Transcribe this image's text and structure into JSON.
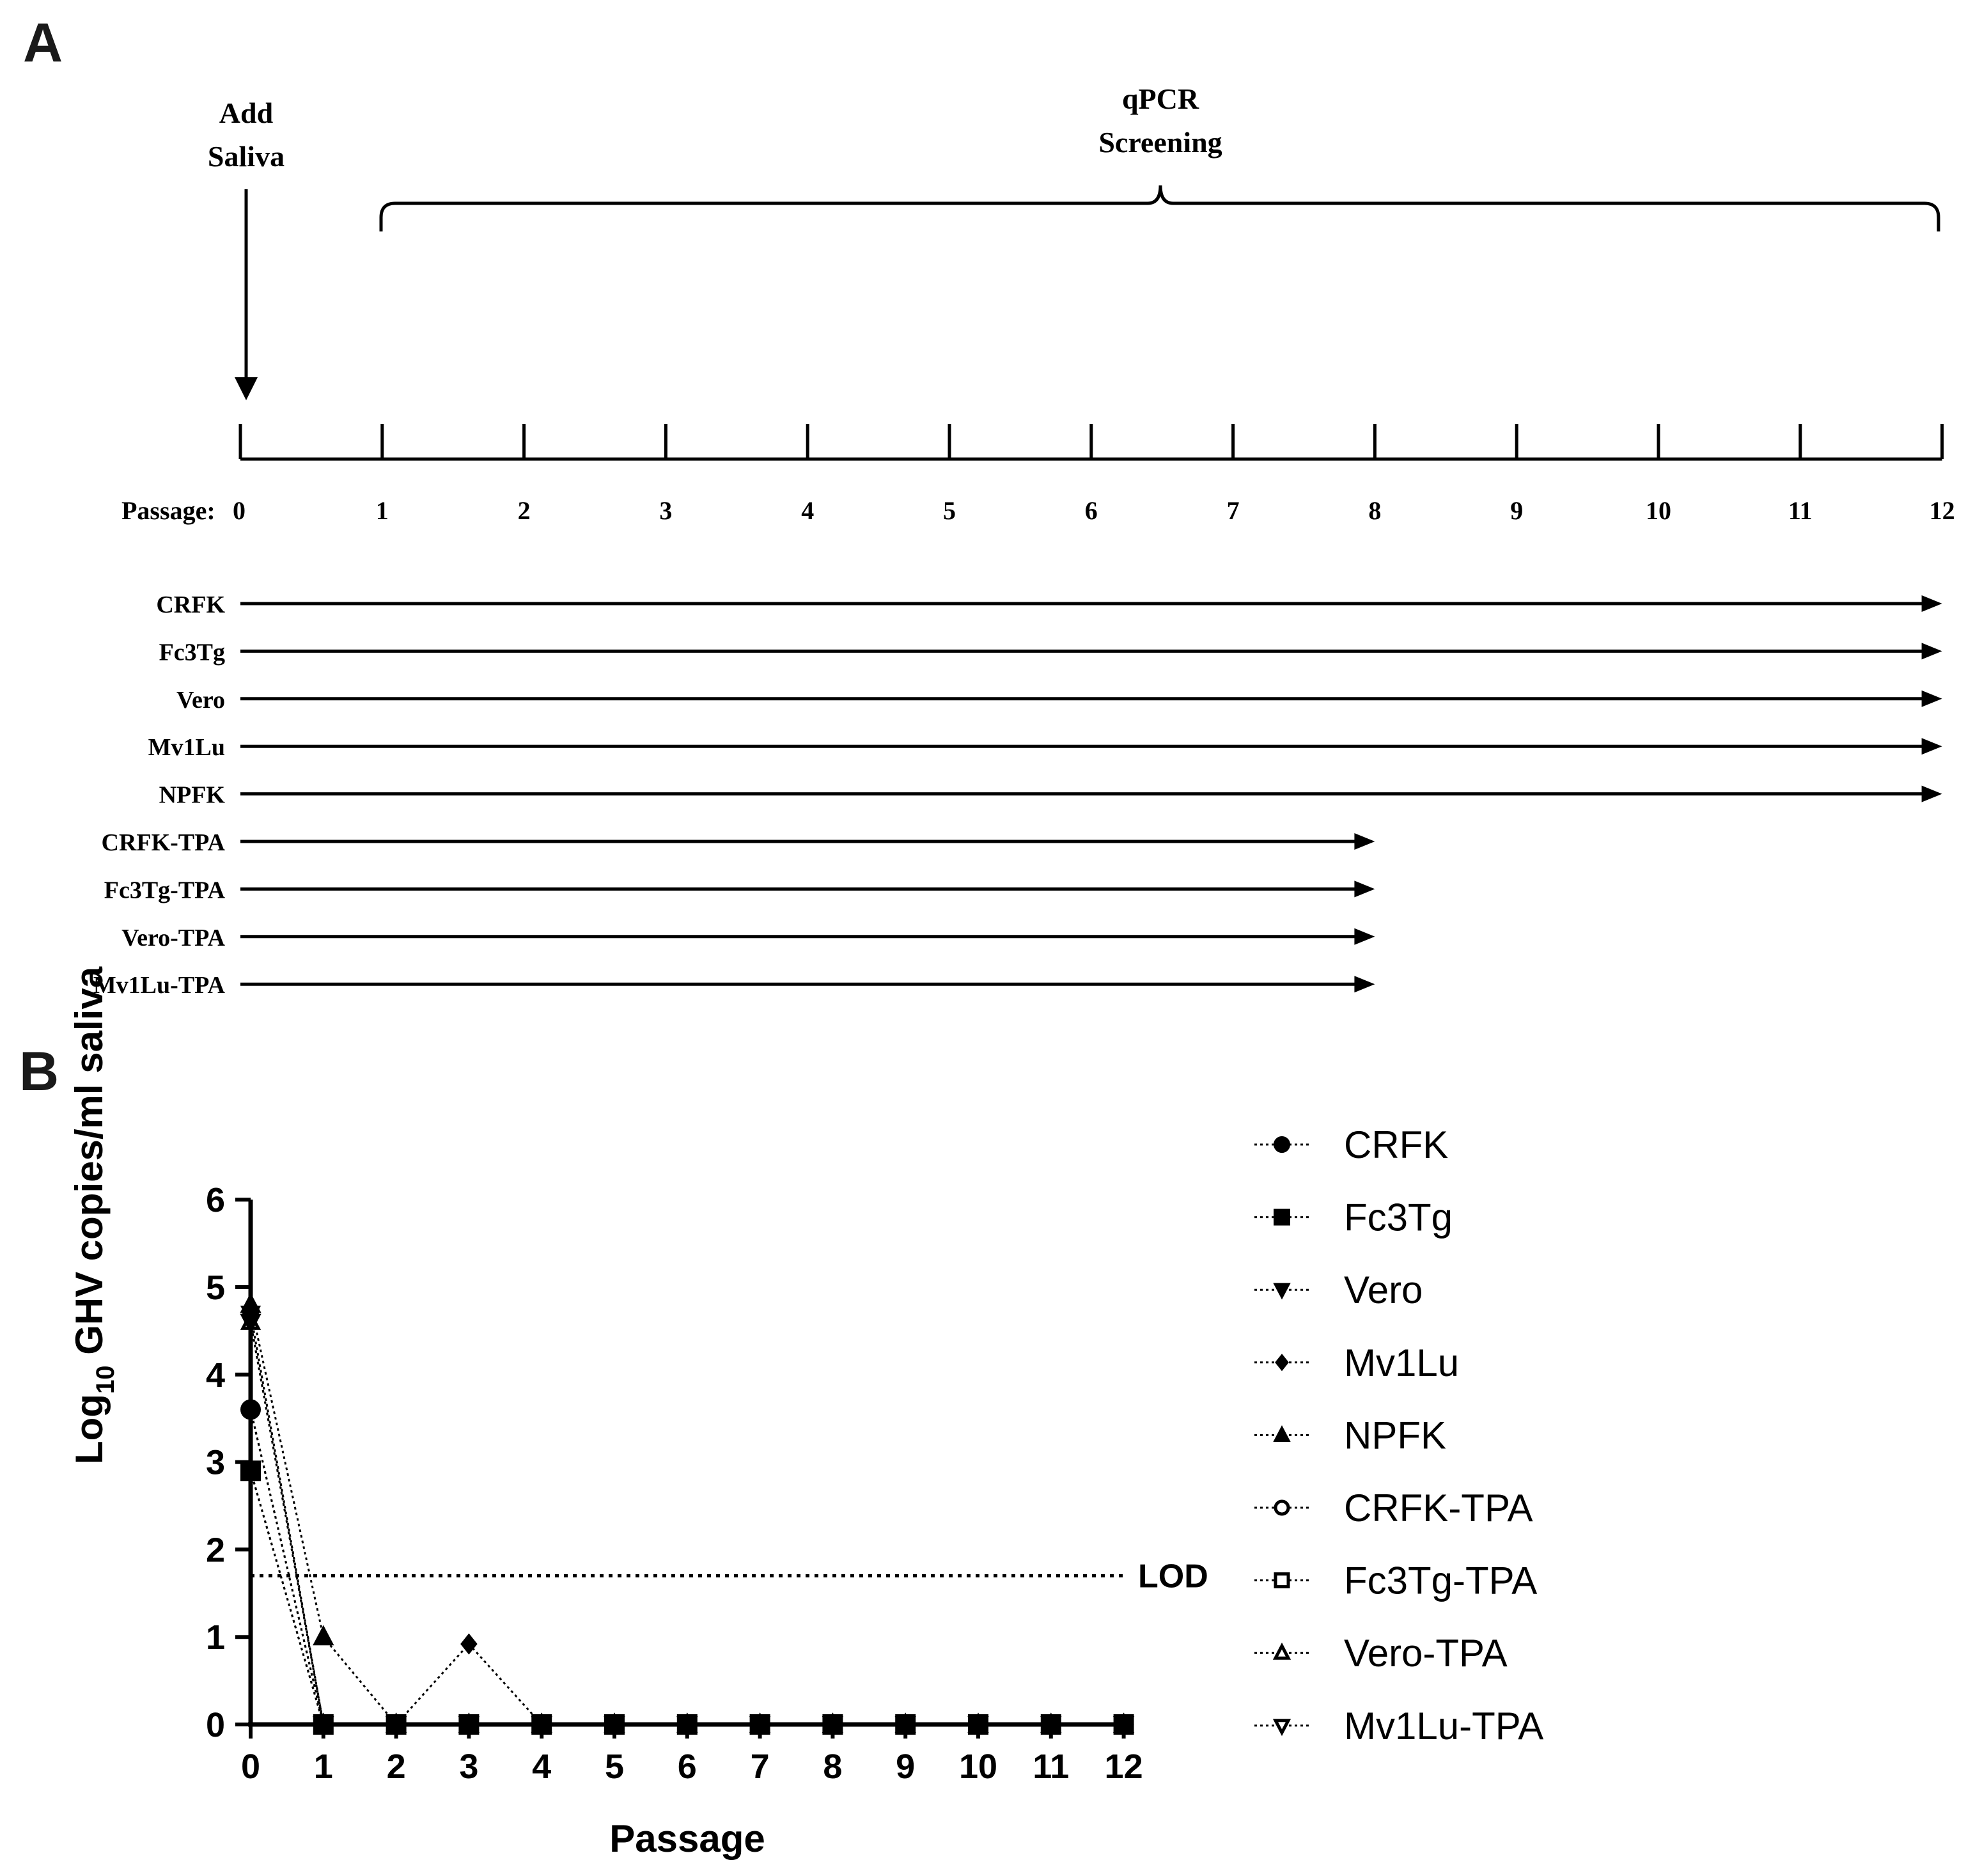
{
  "panel_a": {
    "label": "A",
    "add_saliva_line1": "Add",
    "add_saliva_line2": "Saliva",
    "qpcr_line1": "qPCR",
    "qpcr_line2": "Screening",
    "passage_prefix": "Passage:",
    "passage_ticks": [
      "0",
      "1",
      "2",
      "3",
      "4",
      "5",
      "6",
      "7",
      "8",
      "9",
      "10",
      "11",
      "12"
    ],
    "cell_lines": [
      {
        "name": "CRFK",
        "end_passage": 12
      },
      {
        "name": "Fc3Tg",
        "end_passage": 12
      },
      {
        "name": "Vero",
        "end_passage": 12
      },
      {
        "name": "Mv1Lu",
        "end_passage": 12
      },
      {
        "name": "NPFK",
        "end_passage": 12
      },
      {
        "name": "CRFK-TPA",
        "end_passage": 8
      },
      {
        "name": "Fc3Tg-TPA",
        "end_passage": 8
      },
      {
        "name": "Vero-TPA",
        "end_passage": 8
      },
      {
        "name": "Mv1Lu-TPA",
        "end_passage": 8
      }
    ]
  },
  "panel_b": {
    "label": "B",
    "lod_label": "LOD"
  },
  "chart_data": {
    "type": "line",
    "title": "",
    "xlabel": "Passage",
    "ylabel_prefix": "Log",
    "ylabel_sub": "10",
    "ylabel_rest": " GHV copies/ml saliva",
    "x": [
      0,
      1,
      2,
      3,
      4,
      5,
      6,
      7,
      8,
      9,
      10,
      11,
      12
    ],
    "x_tick_labels": [
      "0",
      "1",
      "2",
      "3",
      "4",
      "5",
      "6",
      "7",
      "8",
      "9",
      "10",
      "11",
      "12"
    ],
    "y_ticks": [
      0,
      1,
      2,
      3,
      4,
      5,
      6
    ],
    "ylim": [
      0,
      6
    ],
    "lod": 1.7,
    "legend_position": "right",
    "series": [
      {
        "name": "CRFK",
        "marker": "circle",
        "filled": true,
        "x": [
          0,
          1,
          2,
          3,
          4,
          5,
          6,
          7,
          8,
          9,
          10,
          11,
          12
        ],
        "values": [
          3.6,
          0,
          0,
          0,
          0,
          0,
          0,
          0,
          0,
          0,
          0,
          0,
          0
        ]
      },
      {
        "name": "Fc3Tg",
        "marker": "square",
        "filled": true,
        "x": [
          0,
          1,
          2,
          3,
          4,
          5,
          6,
          7,
          8,
          9,
          10,
          11,
          12
        ],
        "values": [
          2.9,
          0,
          0,
          0,
          0,
          0,
          0,
          0,
          0,
          0,
          0,
          0,
          0
        ]
      },
      {
        "name": "Vero",
        "marker": "triangle-down",
        "filled": true,
        "x": [
          0,
          1,
          2,
          3,
          4,
          5,
          6,
          7,
          8,
          9,
          10,
          11,
          12
        ],
        "values": [
          4.6,
          0,
          0,
          0,
          0,
          0,
          0,
          0,
          0,
          0,
          0,
          0,
          0
        ]
      },
      {
        "name": "Mv1Lu",
        "marker": "diamond",
        "filled": true,
        "x": [
          0,
          1,
          2,
          3,
          4,
          5,
          6,
          7,
          8,
          9,
          10,
          11,
          12
        ],
        "values": [
          4.7,
          0,
          0,
          0.92,
          0,
          0,
          0,
          0,
          0,
          0,
          0,
          0,
          0
        ]
      },
      {
        "name": "NPFK",
        "marker": "triangle-up",
        "filled": true,
        "x": [
          0,
          1,
          2,
          3,
          4,
          5,
          6,
          7,
          8,
          9,
          10,
          11,
          12
        ],
        "values": [
          4.8,
          1.0,
          0,
          0,
          0,
          0,
          0,
          0,
          0,
          0,
          0,
          0,
          0
        ]
      },
      {
        "name": "CRFK-TPA",
        "marker": "circle",
        "filled": false,
        "x": [
          0,
          1,
          2,
          3,
          4,
          5,
          6,
          7,
          8
        ],
        "values": [
          3.6,
          0,
          0,
          0,
          0,
          0,
          0,
          0,
          0
        ]
      },
      {
        "name": "Fc3Tg-TPA",
        "marker": "square",
        "filled": false,
        "x": [
          0,
          1,
          2,
          3,
          4,
          5,
          6,
          7,
          8
        ],
        "values": [
          2.9,
          0,
          0,
          0,
          0,
          0,
          0,
          0,
          0
        ]
      },
      {
        "name": "Vero-TPA",
        "marker": "triangle-up",
        "filled": false,
        "x": [
          0,
          1,
          2,
          3,
          4,
          5,
          6,
          7,
          8
        ],
        "values": [
          4.6,
          0,
          0,
          0,
          0,
          0,
          0,
          0,
          0
        ]
      },
      {
        "name": "Mv1Lu-TPA",
        "marker": "triangle-down",
        "filled": false,
        "x": [
          0,
          1,
          2,
          3,
          4,
          5,
          6,
          7,
          8
        ],
        "values": [
          4.7,
          0,
          0,
          0,
          0,
          0,
          0,
          0,
          0
        ]
      }
    ]
  }
}
